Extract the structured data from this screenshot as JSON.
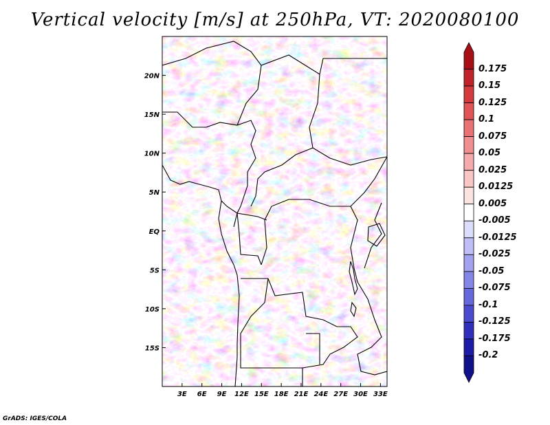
{
  "title": "Vertical velocity [m/s] at 250hPa, VT: 2020080100",
  "footer": "GrADS: IGES/COLA",
  "map": {
    "lon_range": [
      0,
      34
    ],
    "lat_range": [
      -20,
      25
    ],
    "x_ticks": [
      "3E",
      "6E",
      "9E",
      "12E",
      "15E",
      "18E",
      "21E",
      "24E",
      "27E",
      "30E",
      "33E"
    ],
    "y_ticks": [
      "20N",
      "15N",
      "10N",
      "5N",
      "EQ",
      "5S",
      "10S",
      "15S"
    ]
  },
  "colorbar": {
    "labels": [
      "0.175",
      "0.15",
      "0.125",
      "0.1",
      "0.075",
      "0.05",
      "0.025",
      "0.0125",
      "0.005",
      "-0.005",
      "-0.0125",
      "-0.025",
      "-0.05",
      "-0.075",
      "-0.1",
      "-0.125",
      "-0.175",
      "-0.2"
    ],
    "colors": [
      "#a50f15",
      "#c0232a",
      "#d33a3e",
      "#e05458",
      "#ea7174",
      "#f08e90",
      "#f5aaab",
      "#f9c6c6",
      "#fde2e2",
      "#ffffff",
      "#dcdcfb",
      "#bfbff6",
      "#a2a2f0",
      "#8585e8",
      "#6868dd",
      "#4b4bd0",
      "#3030bd",
      "#1c1ca6",
      "#10108a"
    ]
  }
}
